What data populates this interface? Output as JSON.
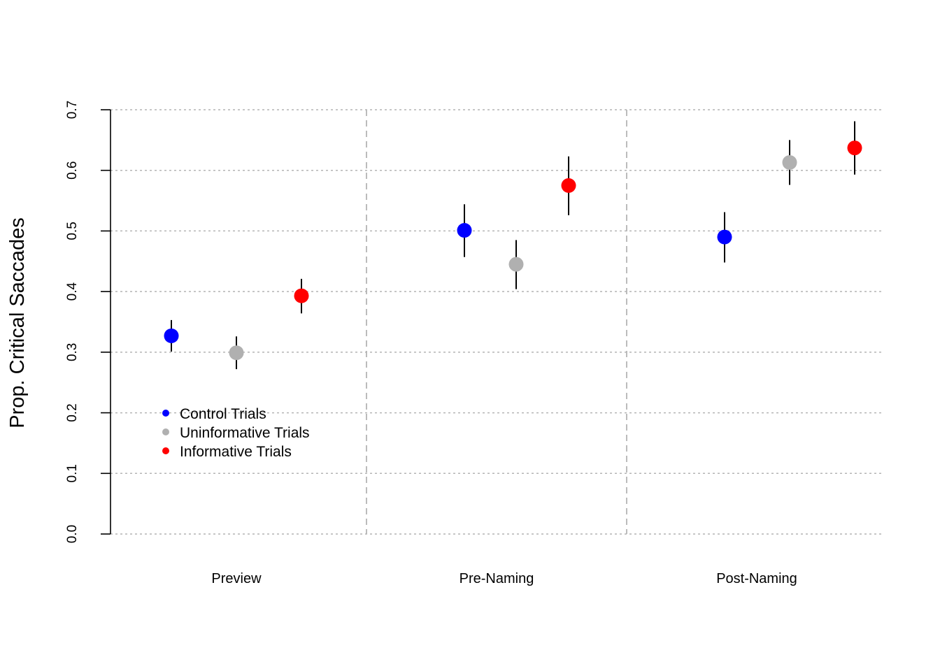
{
  "chart_data": {
    "type": "scatter",
    "ylabel": "Prop. Critical Saccades",
    "xlabel": "",
    "title": "",
    "ylim": [
      0,
      0.7
    ],
    "yticks": [
      0.0,
      0.1,
      0.2,
      0.3,
      0.4,
      0.5,
      0.6,
      0.7
    ],
    "ytick_labels": [
      "0.0",
      "0.1",
      "0.2",
      "0.3",
      "0.4",
      "0.5",
      "0.6",
      "0.7"
    ],
    "grid": true,
    "categories": [
      "Preview",
      "Pre-Naming",
      "Post-Naming"
    ],
    "legend_position": "bottom-left",
    "series": [
      {
        "name": "Control Trials",
        "color": "#0000ff",
        "values": [
          0.327,
          0.501,
          0.49
        ],
        "error_low": [
          0.301,
          0.457,
          0.448
        ],
        "error_high": [
          0.353,
          0.544,
          0.531
        ]
      },
      {
        "name": "Uninformative Trials",
        "color": "#b0b0b0",
        "values": [
          0.299,
          0.445,
          0.613
        ],
        "error_low": [
          0.272,
          0.404,
          0.576
        ],
        "error_high": [
          0.326,
          0.485,
          0.65
        ]
      },
      {
        "name": "Informative Trials",
        "color": "#ff0000",
        "values": [
          0.393,
          0.575,
          0.637
        ],
        "error_low": [
          0.364,
          0.526,
          0.593
        ],
        "error_high": [
          0.421,
          0.623,
          0.681
        ]
      }
    ]
  }
}
